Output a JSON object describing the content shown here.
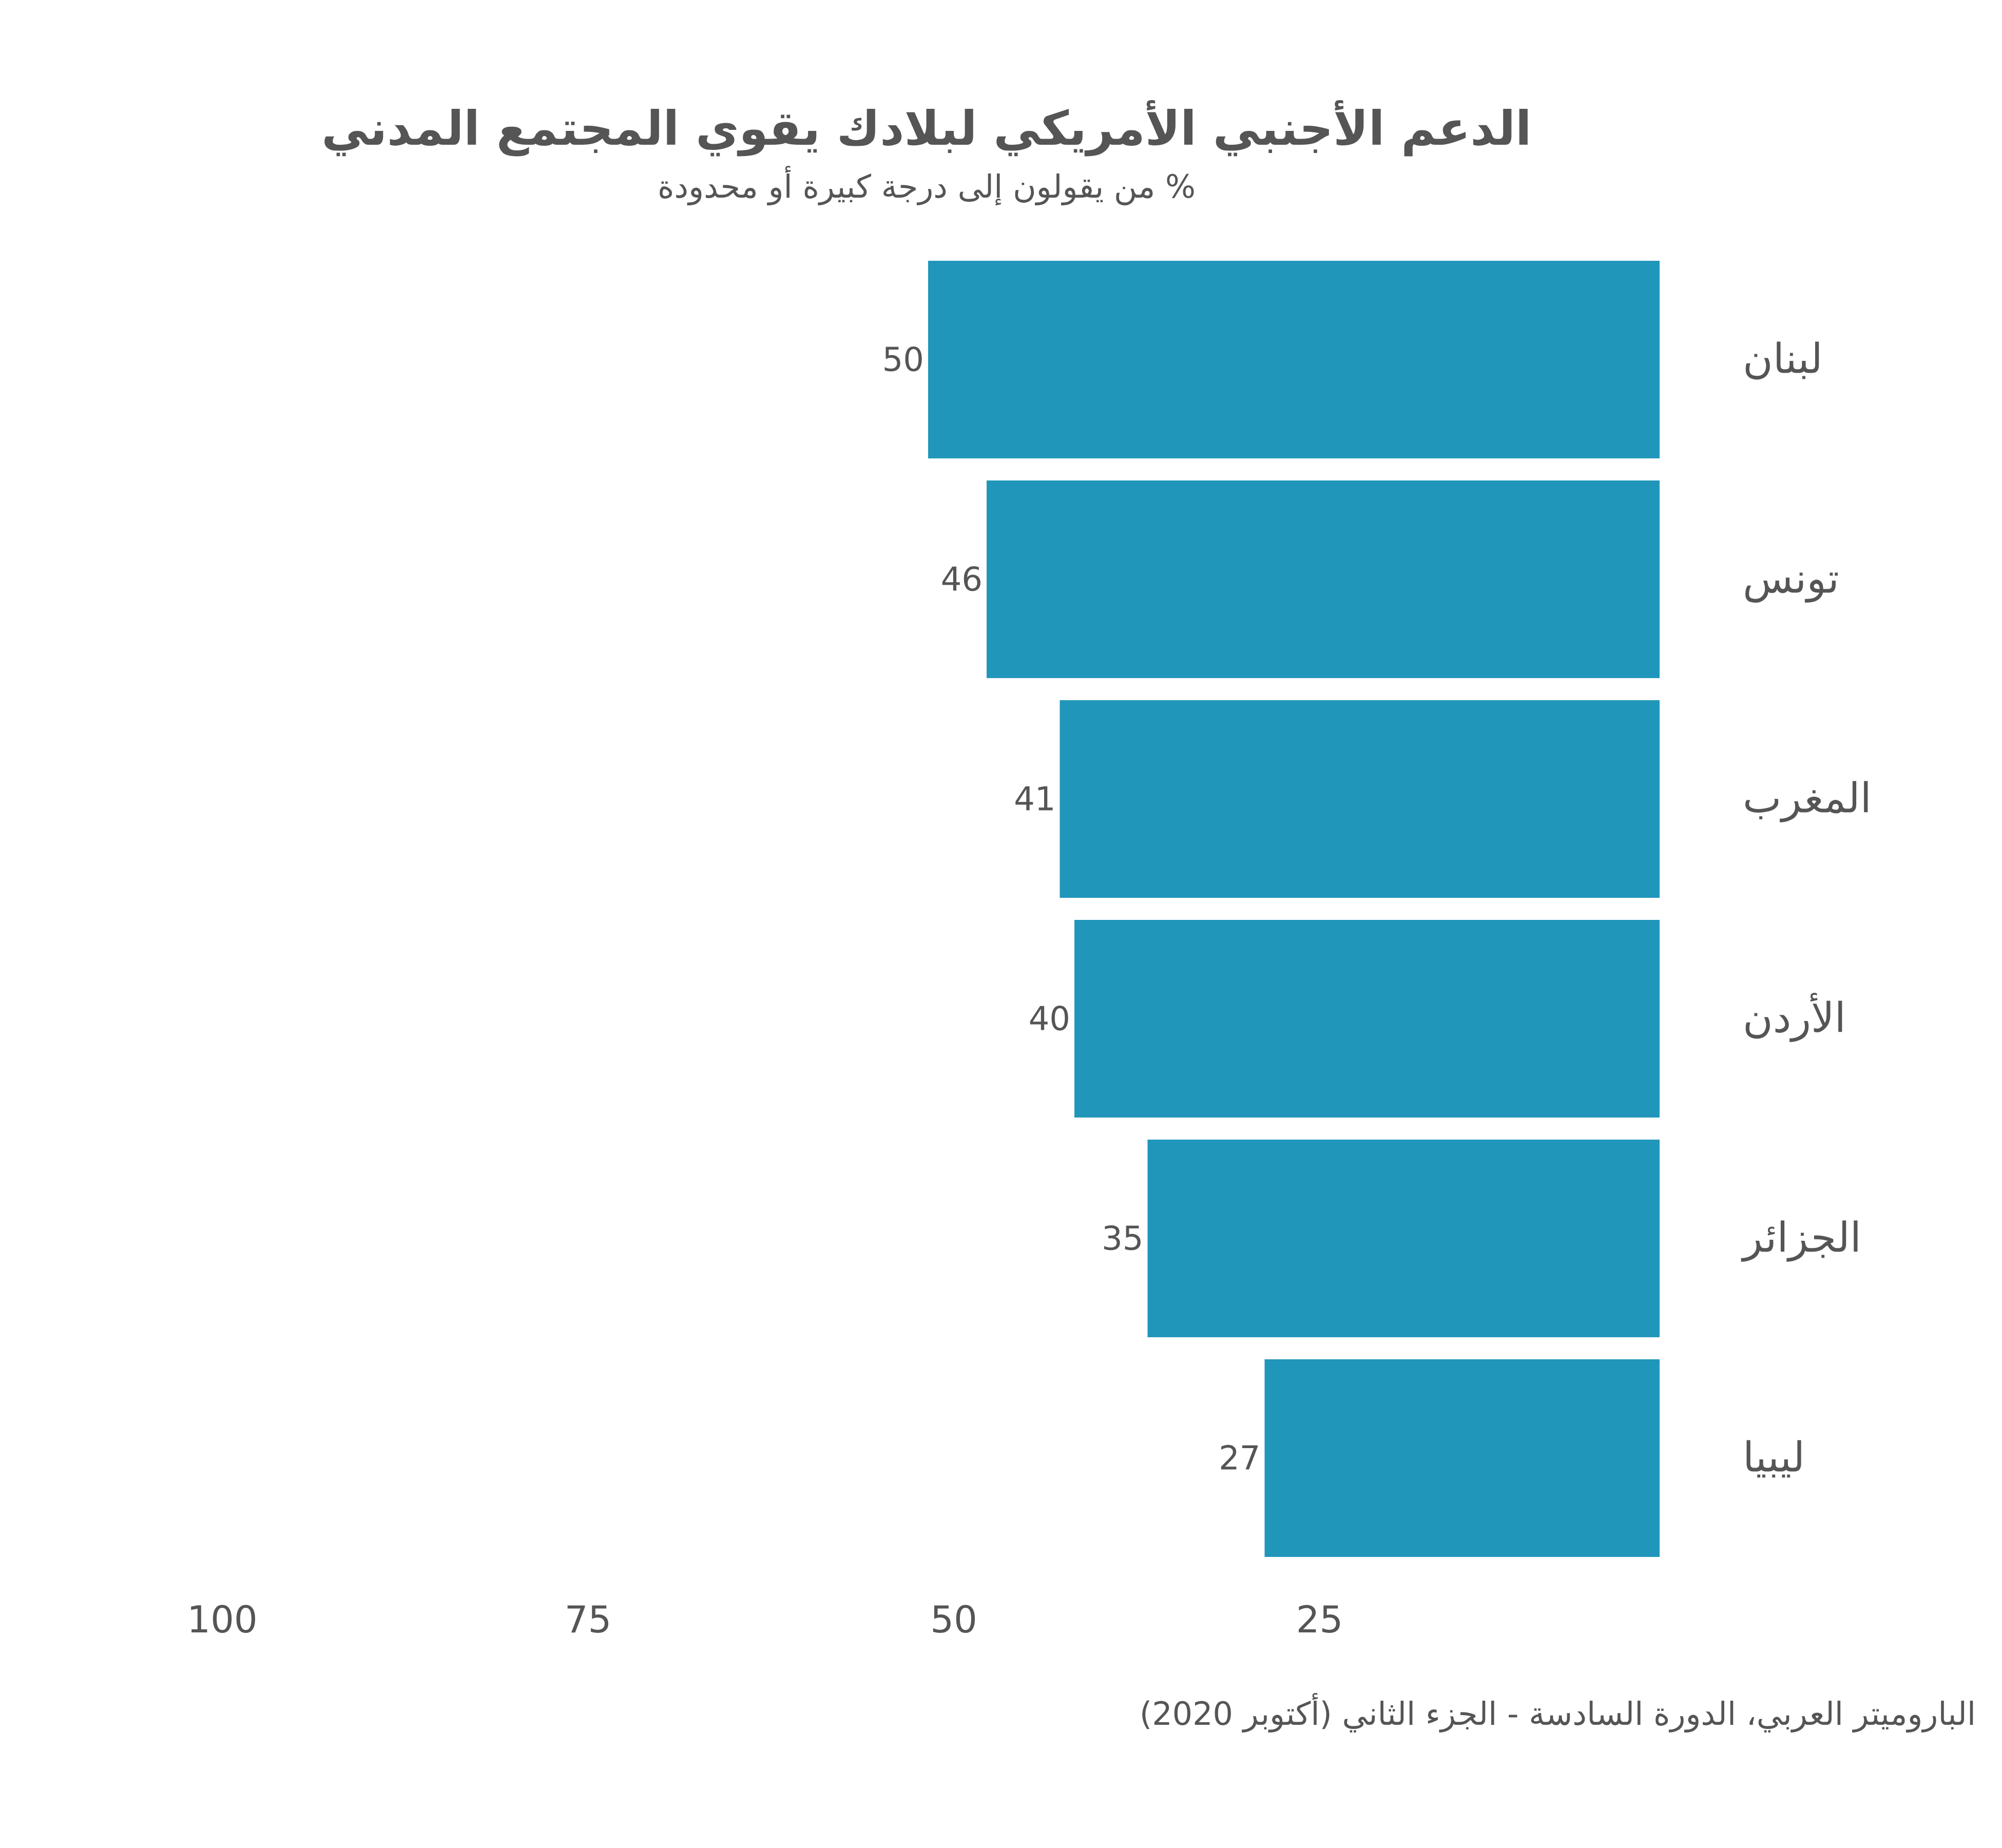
{
  "chart_data": {
    "type": "bar",
    "orientation": "horizontal",
    "direction": "rtl",
    "title": "الدعم الأجنبي الأمريكي لبلادك يقوي المجتمع المدني",
    "subtitle": "% من يقولون إلى درجة كبيرة أو محدودة",
    "categories": [
      "لبنان",
      "تونس",
      "المغرب",
      "الأردن",
      "الجزائر",
      "ليبيا"
    ],
    "values": [
      50,
      46,
      41,
      40,
      35,
      27
    ],
    "xlim": [
      0,
      100
    ],
    "xticks": [
      100,
      75,
      50,
      25
    ],
    "bar_color": "#2196bb",
    "source": "الباروميتر العربي، الدورة السادسة - الجزء الثاني (أكتوبر 2020)"
  }
}
